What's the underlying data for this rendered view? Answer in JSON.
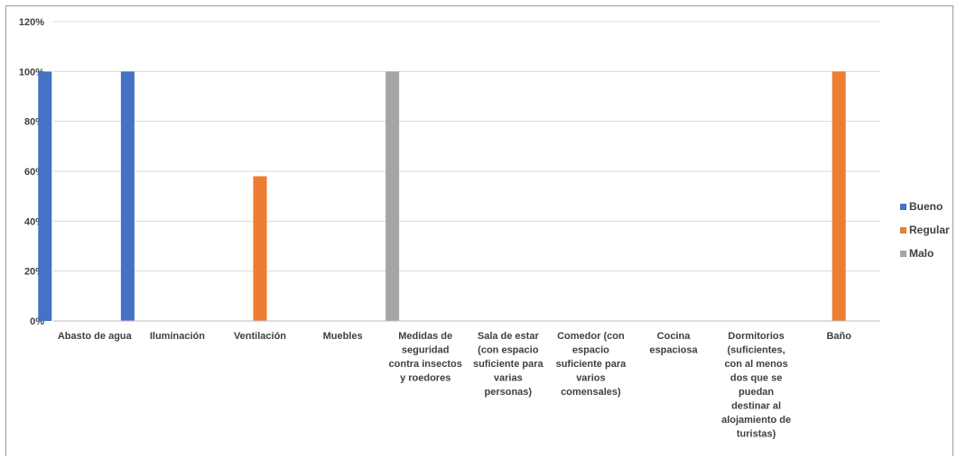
{
  "chart_data": {
    "type": "bar",
    "categories": [
      [
        "Abasto de agua"
      ],
      [
        "Iluminación"
      ],
      [
        "Ventilación"
      ],
      [
        "Muebles"
      ],
      [
        "Medidas de",
        "seguridad",
        "contra insectos",
        "y roedores"
      ],
      [
        "Sala de estar",
        "(con espacio",
        "suficiente para",
        "varias",
        "personas)"
      ],
      [
        "Comedor (con",
        "espacio",
        "suficiente para",
        "varios",
        "comensales)"
      ],
      [
        "Cocina",
        "espaciosa"
      ],
      [
        "Dormitorios",
        "(suficientes,",
        "con al menos",
        "dos que se",
        "puedan",
        "destinar al",
        "alojamiento de",
        "turistas)"
      ],
      [
        "Baño"
      ]
    ],
    "series": [
      {
        "name": "Bueno",
        "color": "#4472C4",
        "values": [
          100,
          100,
          0,
          0,
          0,
          0,
          0,
          0,
          0,
          0
        ]
      },
      {
        "name": "Regular",
        "color": "#ED7D31",
        "values": [
          0,
          0,
          58,
          0,
          0,
          0,
          0,
          0,
          0,
          100
        ]
      },
      {
        "name": "Malo",
        "color": "#A5A5A5",
        "values": [
          0,
          0,
          0,
          100,
          0,
          0,
          0,
          0,
          0,
          0
        ]
      }
    ],
    "ylim": [
      0,
      120
    ],
    "yticks": [
      "0%",
      "20%",
      "40%",
      "60%",
      "80%",
      "100%",
      "120%"
    ],
    "grid": true,
    "legend": "right"
  }
}
